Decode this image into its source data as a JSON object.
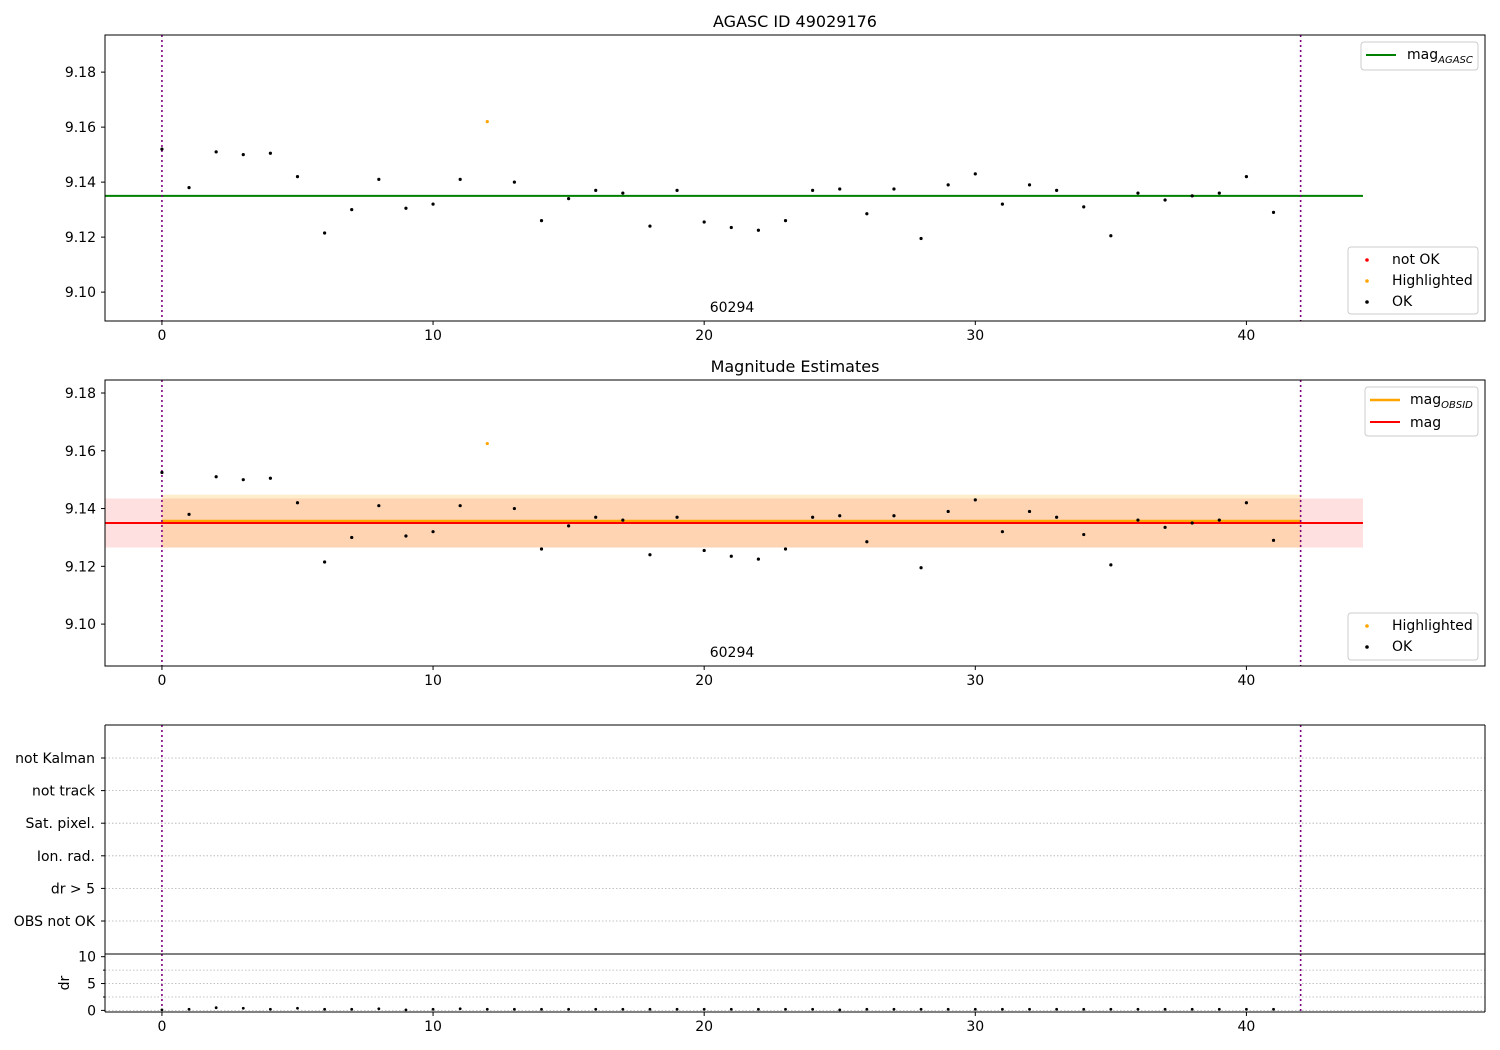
{
  "figure": {
    "panel_title_1": "AGASC ID 49029176",
    "panel_title_2": "Magnitude Estimates",
    "obsid_label": "60294"
  },
  "colors": {
    "agasc_line": "#008000",
    "obsid_line": "#ffa500",
    "mag_line": "#ff0000",
    "not_ok": "#ff0000",
    "highlighted": "#ffa500",
    "ok": "#000000",
    "obs_boundary": "#800080",
    "band_obsid": "#ffa500",
    "band_mag": "#ff0000",
    "grid": "#b0b0b0"
  },
  "chart_data": [
    {
      "type": "scatter",
      "title": "AGASC ID 49029176",
      "xlim": [
        -2.1,
        48.8
      ],
      "ylim": [
        9.0895,
        9.1935
      ],
      "xticks": [
        0,
        10,
        20,
        30,
        40
      ],
      "yticks": [
        9.1,
        9.12,
        9.14,
        9.16,
        9.18
      ],
      "ytick_labels": [
        "9.10",
        "9.12",
        "9.14",
        "9.16",
        "9.18"
      ],
      "x": [
        0,
        1,
        2,
        3,
        4,
        5,
        6,
        7,
        8,
        9,
        10,
        11,
        12,
        13,
        14,
        15,
        16,
        17,
        18,
        19,
        20,
        21,
        22,
        23,
        24,
        25,
        26,
        27,
        28,
        29,
        30,
        31,
        32,
        33,
        34,
        35,
        36,
        37,
        38,
        39,
        40,
        41
      ],
      "y": [
        9.152,
        9.138,
        9.151,
        9.15,
        9.1505,
        9.142,
        9.1215,
        9.13,
        9.141,
        9.1305,
        9.132,
        9.141,
        9.162,
        9.14,
        9.126,
        9.134,
        9.137,
        9.136,
        9.124,
        9.137,
        9.1255,
        9.1235,
        9.1225,
        9.126,
        9.137,
        9.1375,
        9.1285,
        9.1375,
        9.1195,
        9.139,
        9.143,
        9.132,
        9.139,
        9.137,
        9.131,
        9.1205,
        9.136,
        9.1335,
        9.135,
        9.136,
        9.142,
        9.129
      ],
      "highlighted_index": [
        12
      ],
      "not_ok_index": [],
      "obs_boundaries": [
        0,
        42
      ],
      "hlines": [
        {
          "name": "mag",
          "subscript": "AGASC",
          "y": 9.135,
          "x_range": [
            -2.1,
            44.3
          ]
        }
      ],
      "legend_lines": [
        {
          "name": "mag",
          "subscript": "AGASC"
        }
      ],
      "legend_points": [
        "not OK",
        "Highlighted",
        "OK"
      ],
      "legend_placement": [
        "upper right",
        "lower right"
      ]
    },
    {
      "type": "scatter",
      "title": "Magnitude Estimates",
      "xlim": [
        -2.1,
        48.8
      ],
      "ylim": [
        9.0855,
        9.1845
      ],
      "xticks": [
        0,
        10,
        20,
        30,
        40
      ],
      "yticks": [
        9.1,
        9.12,
        9.14,
        9.16,
        9.18
      ],
      "ytick_labels": [
        "9.10",
        "9.12",
        "9.14",
        "9.16",
        "9.18"
      ],
      "x": [
        0,
        1,
        2,
        3,
        4,
        5,
        6,
        7,
        8,
        9,
        10,
        11,
        12,
        13,
        14,
        15,
        16,
        17,
        18,
        19,
        20,
        21,
        22,
        23,
        24,
        25,
        26,
        27,
        28,
        29,
        30,
        31,
        32,
        33,
        34,
        35,
        36,
        37,
        38,
        39,
        40,
        41
      ],
      "y": [
        9.1525,
        9.138,
        9.151,
        9.15,
        9.1505,
        9.142,
        9.1215,
        9.13,
        9.141,
        9.1305,
        9.132,
        9.141,
        9.1625,
        9.14,
        9.126,
        9.134,
        9.137,
        9.136,
        9.124,
        9.137,
        9.1255,
        9.1235,
        9.1225,
        9.126,
        9.137,
        9.1375,
        9.1285,
        9.1375,
        9.1195,
        9.139,
        9.143,
        9.132,
        9.139,
        9.137,
        9.131,
        9.1205,
        9.136,
        9.1335,
        9.135,
        9.136,
        9.142,
        9.129
      ],
      "highlighted_index": [
        12
      ],
      "obs_boundaries": [
        0,
        42
      ],
      "lines": [
        {
          "name": "mag",
          "subscript": "OBSID",
          "y": 9.1357,
          "x_range": [
            0,
            42
          ]
        },
        {
          "name": "mag",
          "subscript": "",
          "y": 9.135,
          "x_range": [
            -2.1,
            44.3
          ]
        }
      ],
      "bands": [
        {
          "name": "mag_obsid_band",
          "y_range": [
            9.1265,
            9.1448
          ],
          "x_range": [
            0,
            42
          ]
        },
        {
          "name": "mag_band",
          "y_range": [
            9.1265,
            9.1435
          ],
          "x_range": [
            -2.1,
            44.3
          ]
        }
      ],
      "legend_points": [
        "Highlighted",
        "OK"
      ],
      "legend_placement": [
        "upper right",
        "lower right"
      ]
    },
    {
      "type": "scatter",
      "title": "",
      "xlim": [
        -2.1,
        48.8
      ],
      "flag_categories": [
        "OBS not OK",
        "dr > 5",
        "Ion. rad.",
        "Sat. pixel.",
        "not track",
        "not Kalman"
      ],
      "obs_boundaries": [
        0,
        42
      ]
    },
    {
      "type": "scatter",
      "title": "",
      "ylabel": "dr",
      "xlim": [
        -2.1,
        48.8
      ],
      "ylim": [
        -0.3,
        10.5
      ],
      "xticks": [
        0,
        10,
        20,
        30,
        40
      ],
      "yticks": [
        0,
        5,
        10
      ],
      "x": [
        0,
        1,
        2,
        3,
        4,
        5,
        6,
        7,
        8,
        9,
        10,
        11,
        12,
        13,
        14,
        15,
        16,
        17,
        18,
        19,
        20,
        21,
        22,
        23,
        24,
        25,
        26,
        27,
        28,
        29,
        30,
        31,
        32,
        33,
        34,
        35,
        36,
        37,
        38,
        39,
        40,
        41
      ],
      "y": [
        0.1,
        0.2,
        0.5,
        0.4,
        0.2,
        0.4,
        0.2,
        0.2,
        0.3,
        0.1,
        0.2,
        0.3,
        0.2,
        0.2,
        0.2,
        0.2,
        0.2,
        0.2,
        0.2,
        0.2,
        0.2,
        0.2,
        0.2,
        0.2,
        0.2,
        0.1,
        0.2,
        0.2,
        0.2,
        0.2,
        0.2,
        0.2,
        0.2,
        0.2,
        0.2,
        0.2,
        0.2,
        0.2,
        0.2,
        0.2,
        0.2,
        0.2
      ],
      "obs_boundaries": [
        0,
        42
      ]
    }
  ]
}
